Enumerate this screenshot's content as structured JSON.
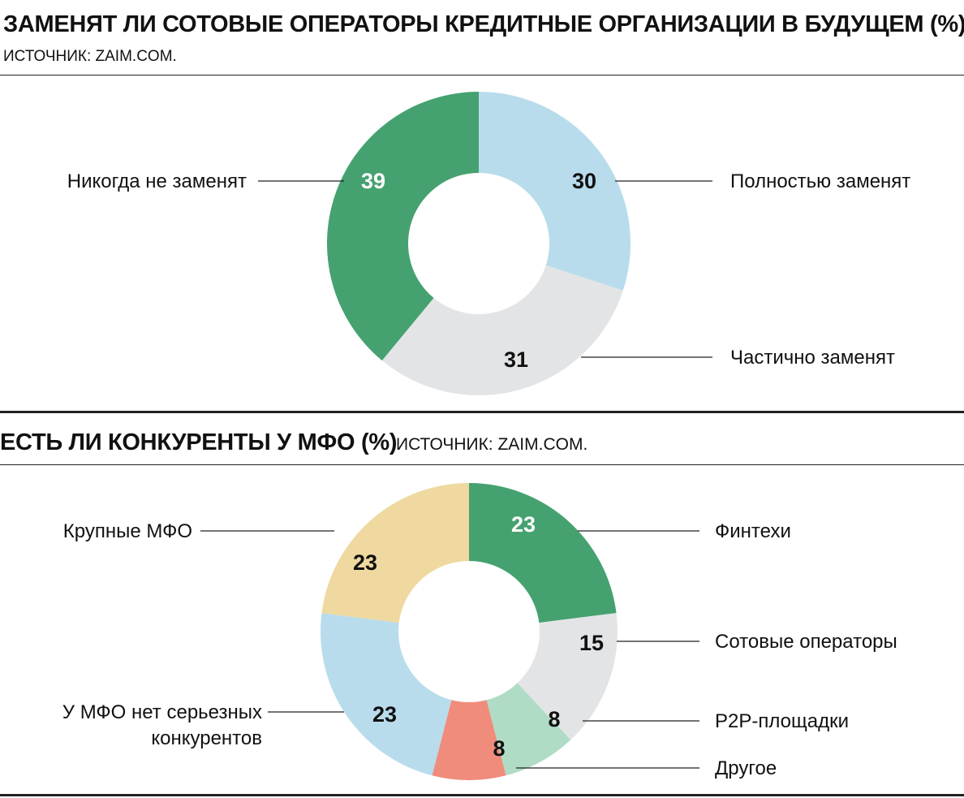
{
  "chart_data": [
    {
      "type": "pie",
      "variant": "donut",
      "title": "ЗАМЕНЯТ ЛИ СОТОВЫЕ ОПЕРАТОРЫ КРЕДИТНЫЕ ОРГАНИЗАЦИИ В БУДУЩЕМ (%)",
      "source": "ИСТОЧНИК: ZAIM.COM.",
      "slices": [
        {
          "label": "Полностью заменят",
          "value": 30,
          "color": "#b8dcec",
          "value_color": "#111111"
        },
        {
          "label": "Частично заменят",
          "value": 31,
          "color": "#e3e4e6",
          "value_color": "#111111"
        },
        {
          "label": "Никогда не заменят",
          "value": 39,
          "color": "#45a270",
          "value_color": "#ffffff"
        }
      ]
    },
    {
      "type": "pie",
      "variant": "donut",
      "title": "ЕСТЬ ЛИ КОНКУРЕНТЫ У МФО (%)",
      "source": "ИСТОЧНИК: ZAIM.COM.",
      "slices": [
        {
          "label": "Финтехи",
          "value": 23,
          "color": "#45a270",
          "value_color": "#ffffff"
        },
        {
          "label": "Сотовые операторы",
          "value": 15,
          "color": "#e3e4e6",
          "value_color": "#111111"
        },
        {
          "label": "P2P-площадки",
          "value": 8,
          "color": "#b0dcc6",
          "value_color": "#111111"
        },
        {
          "label": "Другое",
          "value": 8,
          "color": "#f08c7c",
          "value_color": "#111111"
        },
        {
          "label": "У МФО нет серьезных конкурентов",
          "label_lines": [
            "У МФО нет серьезных",
            "конкурентов"
          ],
          "value": 23,
          "color": "#b8dcec",
          "value_color": "#111111"
        },
        {
          "label": "Крупные МФО",
          "value": 23,
          "color": "#efd9a0",
          "value_color": "#111111"
        }
      ]
    }
  ]
}
